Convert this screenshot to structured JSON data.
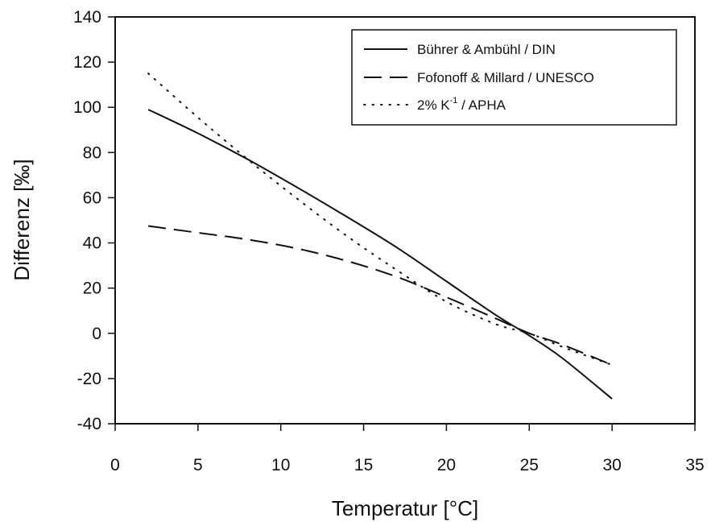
{
  "chart_data": {
    "type": "line",
    "title": "",
    "xlabel": "Temperatur [°C]",
    "ylabel": "Differenz [‰]",
    "xlim": [
      0,
      35
    ],
    "ylim": [
      -40,
      140
    ],
    "xticks": [
      0,
      5,
      10,
      15,
      20,
      25,
      30,
      35
    ],
    "yticks": [
      -40,
      -20,
      0,
      20,
      40,
      60,
      80,
      100,
      120,
      140
    ],
    "grid": false,
    "legend_position": "top-right",
    "series": [
      {
        "name": "Bührer & Ambühl / DIN",
        "style": "solid",
        "x": [
          2,
          5,
          8,
          11,
          14,
          17,
          20,
          23,
          25,
          27,
          30
        ],
        "y": [
          99,
          88.5,
          77,
          64.5,
          51.5,
          38,
          23,
          8,
          -1,
          -11,
          -29
        ]
      },
      {
        "name": "Fofonoff & Millard / UNESCO",
        "style": "dashed",
        "x": [
          2,
          5,
          8,
          11,
          14,
          17,
          20,
          23,
          25,
          27,
          30
        ],
        "y": [
          47.5,
          44.5,
          41.5,
          37.5,
          32,
          25,
          16,
          6.5,
          0,
          -5,
          -14
        ]
      },
      {
        "name": "2% K⁻¹ / APHA",
        "style": "dotted",
        "x": [
          2,
          5,
          8,
          11,
          14,
          17,
          20,
          23,
          25,
          27,
          30
        ],
        "y": [
          115,
          95.5,
          77,
          59.5,
          43,
          28,
          14,
          4,
          0,
          -6,
          -14
        ]
      }
    ],
    "legend": {
      "entries": [
        {
          "label": "Bührer & Ambühl / DIN"
        },
        {
          "label": "Fofonoff & Millard / UNESCO"
        },
        {
          "label_pre": "2% K",
          "label_sup": "-1",
          "label_post": " / APHA"
        }
      ]
    }
  }
}
